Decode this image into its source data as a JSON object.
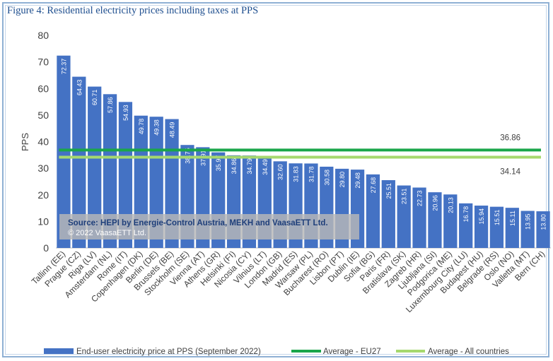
{
  "figure_title": "Figure 4: Residential electricity prices including taxes at PPS",
  "source_note": {
    "line1": "Source: HEPI by Energie-Control Austria, MEKH and VaasaETT Ltd.",
    "line2": "© 2022 VaasaETT Ltd."
  },
  "colors": {
    "bar": "#4472c4",
    "eu27_line": "#1aa64a",
    "all_countries_line": "#a6d86e",
    "title": "#1f4f8f"
  },
  "chart_data": {
    "type": "bar",
    "ylabel": "PPS",
    "ylim": [
      0,
      80
    ],
    "yticks": [
      0,
      10,
      20,
      30,
      40,
      50,
      60,
      70,
      80
    ],
    "grid": false,
    "legend_position": "bottom",
    "categories": [
      "Tallinn (EE)",
      "Prague (CZ)",
      "Riga (LV)",
      "Amsterdam (NL)",
      "Rome (IT)",
      "Copenhagen (DK)",
      "Berlin (DE)",
      "Brussels (BE)",
      "Stockholm (SE)",
      "Vienna (AT)",
      "Athens (GR)",
      "Helsinki (FI)",
      "Nicosia (CY)",
      "Vilnius (LT)",
      "London (GB)",
      "Madrid (ES)",
      "Warsaw (PL)",
      "Bucharest (RO)",
      "Lisbon (PT)",
      "Dublin (IE)",
      "Sofia (BG)",
      "Paris (FR)",
      "Bratislava (SK)",
      "Zagreb (HR)",
      "Ljubljana (SI)",
      "Podgorica (ME)",
      "Luxembourg City (LU)",
      "Budapest (HU)",
      "Belgrade (RS)",
      "Oslo (NO)",
      "Valletta (MT)",
      "Bern (CH)"
    ],
    "series": [
      {
        "name": "End-user electricity price at PPS (September 2022)",
        "values": [
          72.37,
          64.43,
          60.71,
          57.86,
          54.93,
          49.78,
          49.38,
          48.49,
          38.75,
          37.91,
          35.97,
          34.86,
          34.79,
          34.49,
          32.6,
          31.83,
          31.78,
          30.58,
          29.8,
          29.48,
          27.68,
          25.51,
          23.51,
          22.73,
          20.96,
          20.13,
          16.78,
          15.94,
          15.51,
          15.11,
          13.95,
          13.8
        ],
        "value_labels": [
          "72.37",
          "64.43",
          "60.71",
          "57.86",
          "54.93",
          "49.78",
          "49.38",
          "48.49",
          "38.75",
          "37.91",
          "35.97",
          "34.86",
          "34.79",
          "34.49",
          "32.60",
          "31.83",
          "31.78",
          "30.58",
          "29.80",
          "29.48",
          "27.68",
          "25.51",
          "23.51",
          "22.73",
          "20.96",
          "20.13",
          "16.78",
          "15.94",
          "15.51",
          "15.11",
          "13.95",
          "13.80"
        ]
      }
    ],
    "reference_lines": [
      {
        "name": "Average - EU27",
        "value": 36.86,
        "label": "36.86"
      },
      {
        "name": "Average - All countries",
        "value": 34.14,
        "label": "34.14"
      }
    ]
  }
}
